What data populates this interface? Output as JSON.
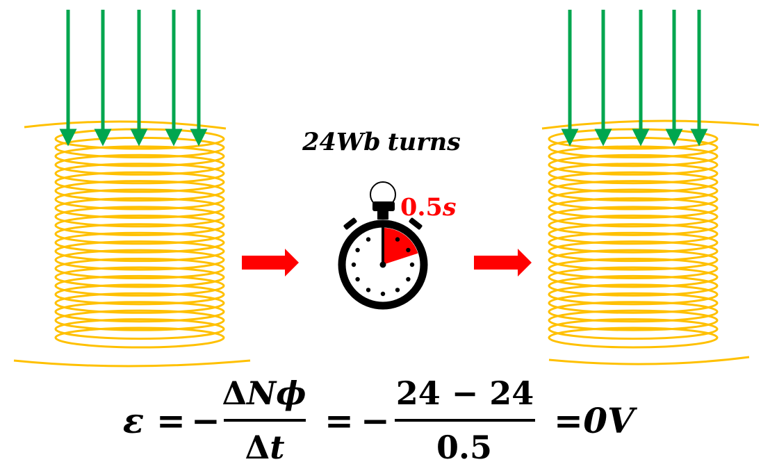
{
  "flux_label": {
    "value": "24",
    "unit": "Wb",
    "word": "turns"
  },
  "timer_label": {
    "value": "0.5",
    "unit": "s"
  },
  "timer_fraction": 0.2,
  "arrow_count": 5,
  "coil_turns": 24,
  "colors": {
    "coil": "#FFC000",
    "field_arrow": "#00A64F",
    "transition_arrow": "#FF0000",
    "stopwatch": "#000000",
    "elapsed_sector": "#FF0000",
    "text": "#000000",
    "timer_text": "#FF0000"
  },
  "icons": {
    "stopwatch": "stopwatch-icon",
    "transition": "right-arrow-icon"
  },
  "equation": {
    "emf_symbol": "ε",
    "equals": "=",
    "minus": "−",
    "numerator_delta": "Δ",
    "numerator_n": "N",
    "numerator_phi": "ϕ",
    "denominator_delta": "Δ",
    "denominator_t": "t",
    "value_numerator": "24 − 24",
    "value_denominator": "0.5",
    "result": "0V"
  }
}
